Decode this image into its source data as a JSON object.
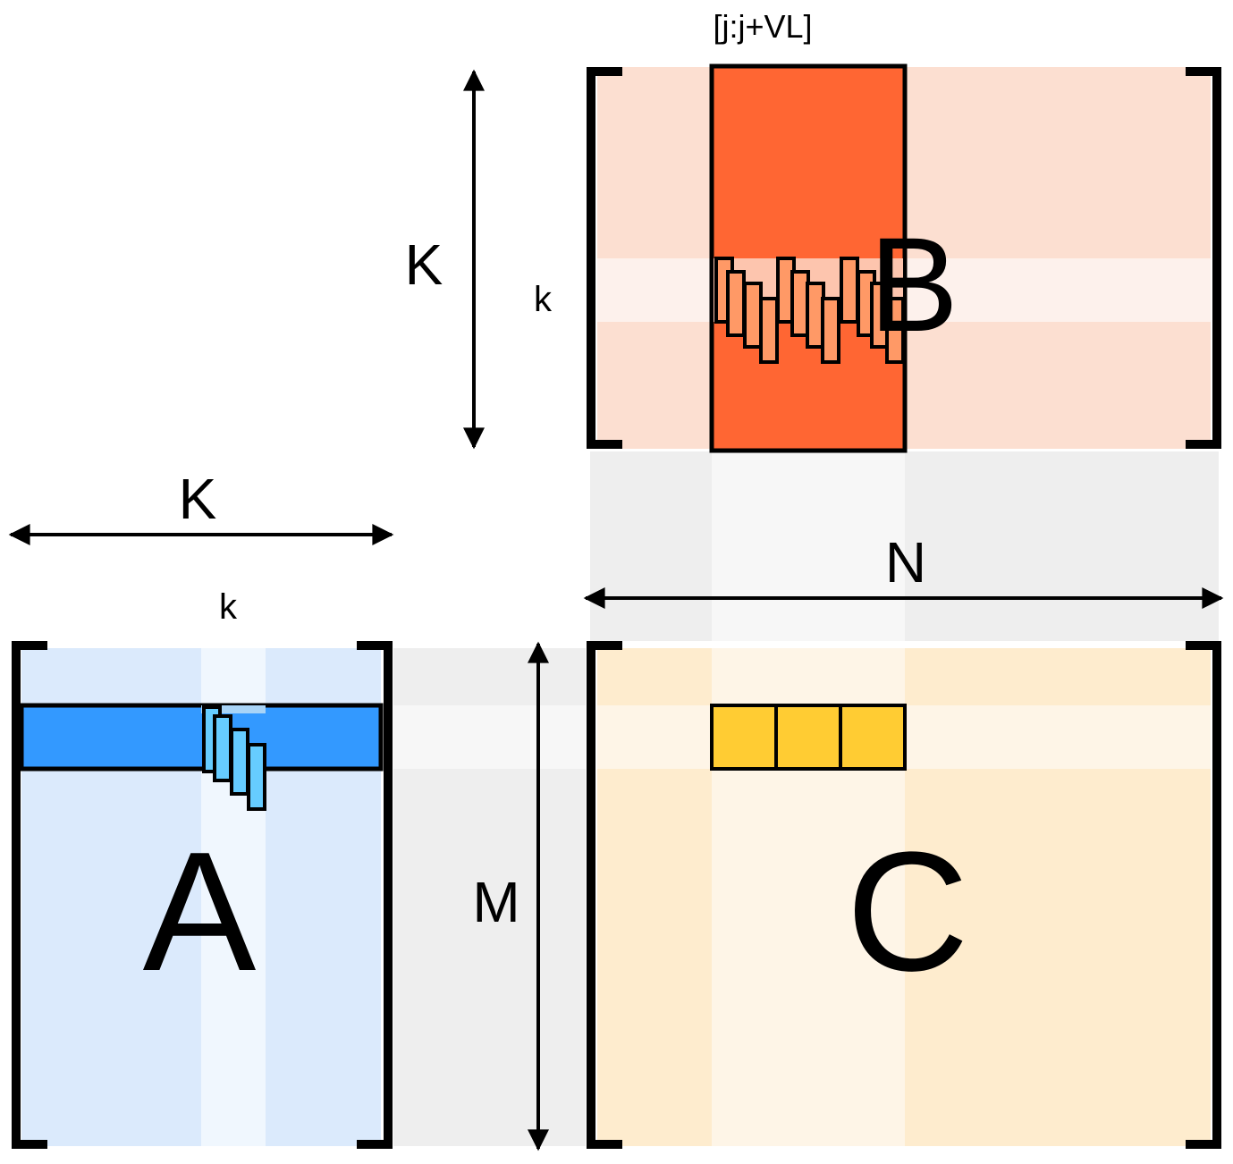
{
  "matrices": {
    "a": {
      "label": "A",
      "row_dim": "M",
      "col_dim": "K",
      "col_index": "k"
    },
    "b": {
      "label": "B",
      "row_dim": "K",
      "col_dim": "N",
      "row_index": "k",
      "col_slice": "[j:j+VL]"
    },
    "c": {
      "label": "C"
    }
  },
  "output_tile_count": 3,
  "colors": {
    "a_fill": "#dbeafc",
    "a_column": "#f0f7fe",
    "a_row": "#3399ff",
    "a_element": "#66ccff",
    "a_row_overlap": "#a8d4f7",
    "b_fill": "#fcdfd1",
    "b_row": "#fdf1ec",
    "b_column": "#ff6633",
    "b_element": "#ff9966",
    "b_row_overlap": "#fdc5ae",
    "c_fill": "#feecce",
    "c_column": "#fef5e7",
    "c_row": "#fef5e7",
    "c_tile": "#ffcc33",
    "gap_fill": "#eeeeee",
    "gap_highlight": "#f7f7f7",
    "stroke": "#000000"
  }
}
